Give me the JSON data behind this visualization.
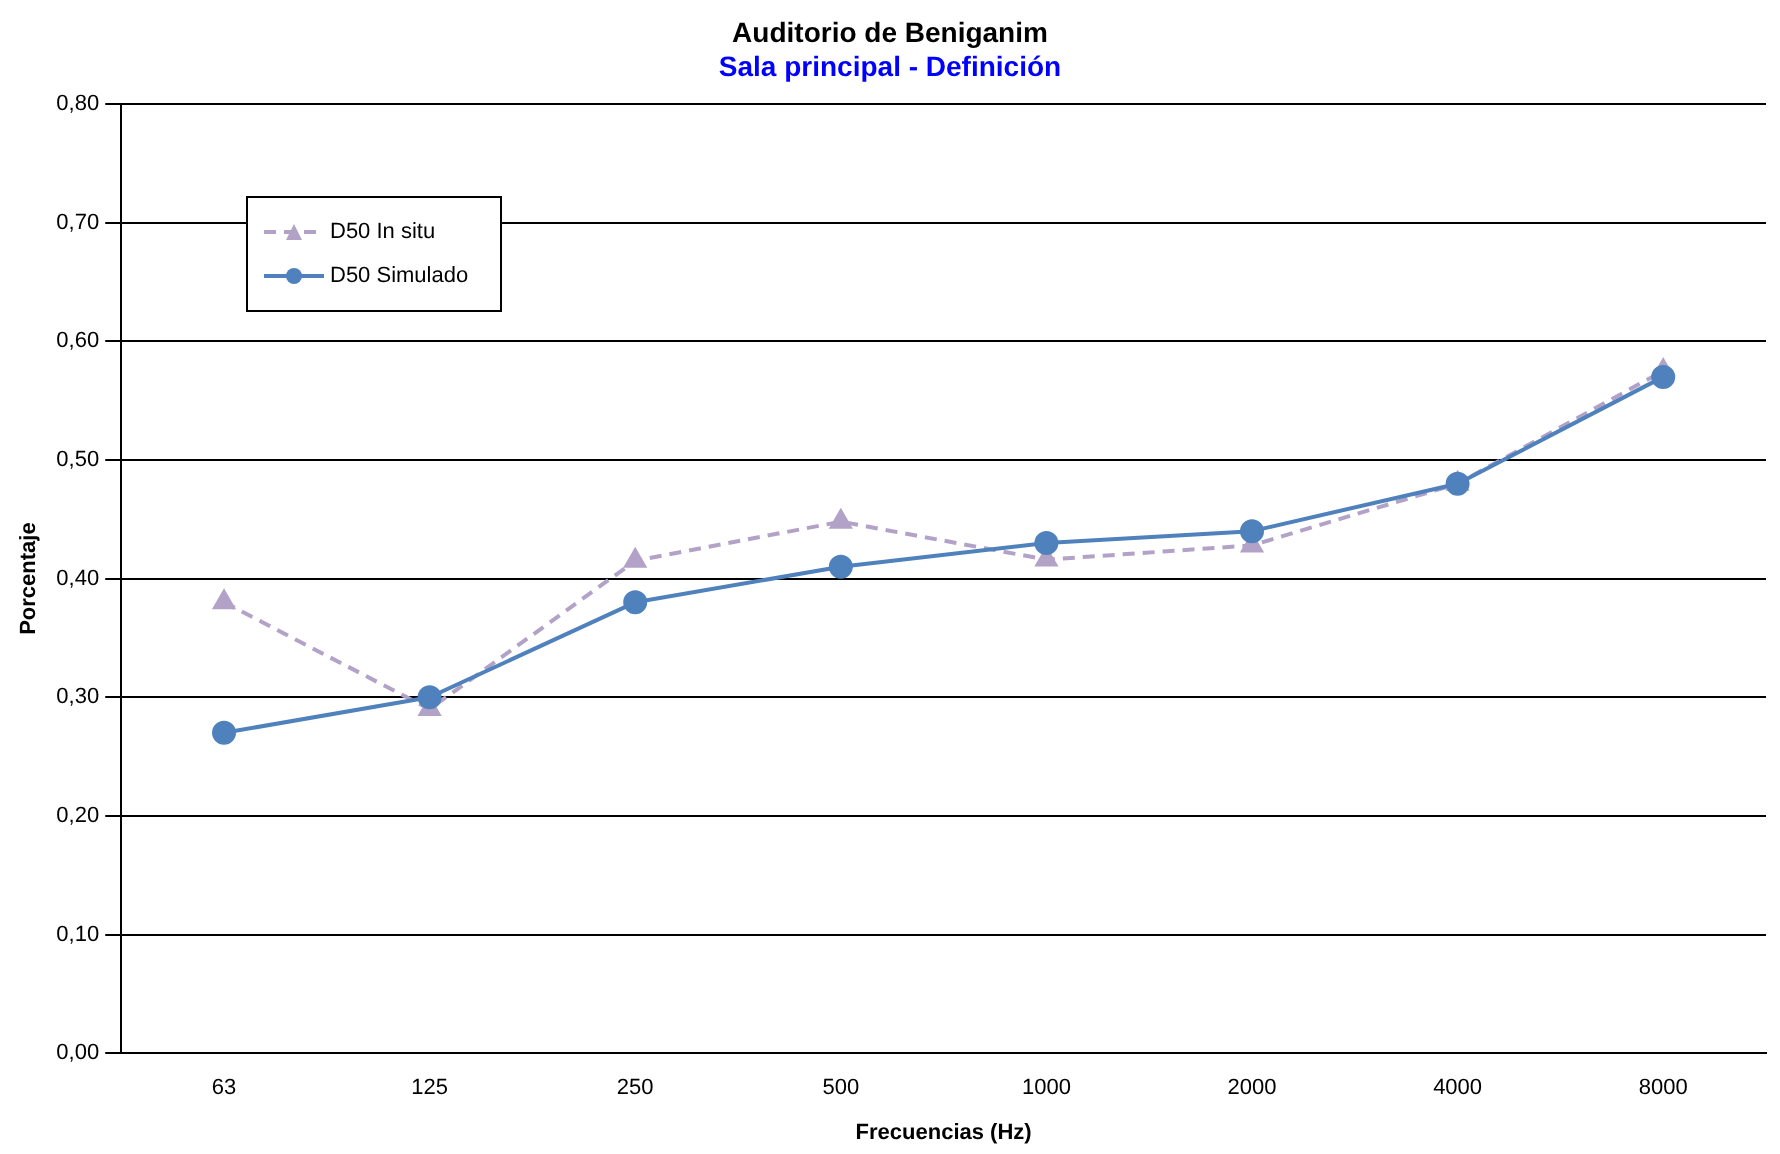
{
  "chart_data": {
    "type": "line",
    "title": "Auditorio de Beniganim",
    "subtitle": "Sala principal - Definición",
    "xlabel": "Frecuencias (Hz)",
    "ylabel": "Porcentaje",
    "categories": [
      "63",
      "125",
      "250",
      "500",
      "1000",
      "2000",
      "4000",
      "8000"
    ],
    "series": [
      {
        "name": "D50 In situ",
        "color": "#b3a2c7",
        "marker": "triangle",
        "line_style": "dashed",
        "values": [
          0.38,
          0.29,
          0.415,
          0.448,
          0.416,
          0.428,
          0.48,
          0.575
        ]
      },
      {
        "name": "D50 Simulado",
        "color": "#4f81bd",
        "marker": "circle",
        "line_style": "solid",
        "values": [
          0.27,
          0.3,
          0.38,
          0.41,
          0.43,
          0.44,
          0.48,
          0.57
        ]
      }
    ],
    "ylim": [
      0,
      0.8
    ],
    "yticks": [
      {
        "value": 0,
        "label": "0,00"
      },
      {
        "value": 0.1,
        "label": "0,10"
      },
      {
        "value": 0.2,
        "label": "0,20"
      },
      {
        "value": 0.3,
        "label": "0,30"
      },
      {
        "value": 0.4,
        "label": "0,40"
      },
      {
        "value": 0.5,
        "label": "0,50"
      },
      {
        "value": 0.6,
        "label": "0,60"
      },
      {
        "value": 0.7,
        "label": "0,70"
      },
      {
        "value": 0.8,
        "label": "0,80"
      }
    ],
    "grid": "y",
    "legend": "top left"
  }
}
